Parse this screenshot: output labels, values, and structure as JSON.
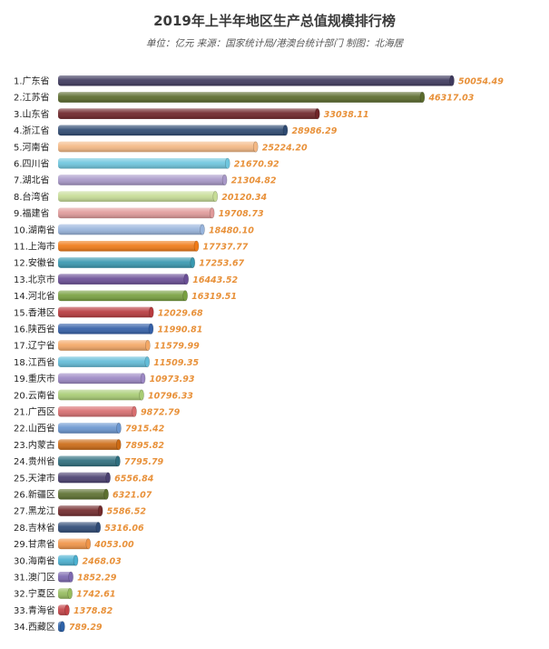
{
  "header": {
    "title": "2019年上半年地区生产总值规模排行榜",
    "subtitle": "单位：亿元 来源：国家统计局/港澳台统计部门 制图：北海居"
  },
  "chart_data": {
    "type": "bar",
    "orientation": "horizontal",
    "title": "2019年上半年地区生产总值规模排行榜",
    "subtitle": "单位：亿元 来源：国家统计局/港澳台统计部门 制图：北海居",
    "xlim": [
      0,
      50054.49
    ],
    "grid": false,
    "categories": [
      "1.广东省",
      "2.江苏省",
      "3.山东省",
      "4.浙江省",
      "5.河南省",
      "6.四川省",
      "7.湖北省",
      "8.台湾省",
      "9.福建省",
      "10.湖南省",
      "11.上海市",
      "12.安徽省",
      "13.北京市",
      "14.河北省",
      "15.香港区",
      "16.陕西省",
      "17.辽宁省",
      "18.江西省",
      "19.重庆市",
      "20.云南省",
      "21.广西区",
      "22.山西省",
      "23.内蒙古",
      "24.贵州省",
      "25.天津市",
      "26.新疆区",
      "27.黑龙江",
      "28.吉林省",
      "29.甘肃省",
      "30.海南省",
      "31.澳门区",
      "32.宁夏区",
      "33.青海省",
      "34.西藏区"
    ],
    "values": [
      50054.49,
      46317.03,
      33038.11,
      28986.29,
      25224.2,
      21670.92,
      21304.82,
      20120.34,
      19708.73,
      18480.1,
      17737.77,
      17253.67,
      16443.52,
      16319.51,
      12029.68,
      11990.81,
      11579.99,
      11509.35,
      10973.93,
      10796.33,
      9872.79,
      7915.42,
      7895.82,
      7795.79,
      6556.84,
      6321.07,
      5586.52,
      5316.06,
      4053.0,
      2468.03,
      1852.29,
      1742.61,
      1378.82,
      789.29
    ],
    "value_labels": [
      "50054.49",
      "46317.03",
      "33038.11",
      "28986.29",
      "25224.20",
      "21670.92",
      "21304.82",
      "20120.34",
      "19708.73",
      "18480.10",
      "17737.77",
      "17253.67",
      "16443.52",
      "16319.51",
      "12029.68",
      "11990.81",
      "11579.99",
      "11509.35",
      "10973.93",
      "10796.33",
      "9872.79",
      "7915.42",
      "7895.82",
      "7795.79",
      "6556.84",
      "6321.07",
      "5586.52",
      "5316.06",
      "4053.00",
      "2468.03",
      "1852.29",
      "1742.61",
      "1378.82",
      "789.29"
    ],
    "colors": [
      "#3f3a5e",
      "#5a6a2c",
      "#6e2428",
      "#2e4a72",
      "#f4b884",
      "#6ec6de",
      "#a898c8",
      "#c6dc96",
      "#e09a9a",
      "#98b4dc",
      "#f07a16",
      "#3898b0",
      "#6a4e96",
      "#78a040",
      "#b83a3e",
      "#3460a8",
      "#f4a866",
      "#62bcd8",
      "#9c88c4",
      "#a8cc74",
      "#d86e70",
      "#6a96d0",
      "#cc6a14",
      "#2e6e7e",
      "#4a4070",
      "#5c7030",
      "#722a2c",
      "#2e4a76",
      "#f09448",
      "#4ab0d0",
      "#7c68b0",
      "#96bc5e",
      "#c44448",
      "#2e62a8"
    ]
  }
}
